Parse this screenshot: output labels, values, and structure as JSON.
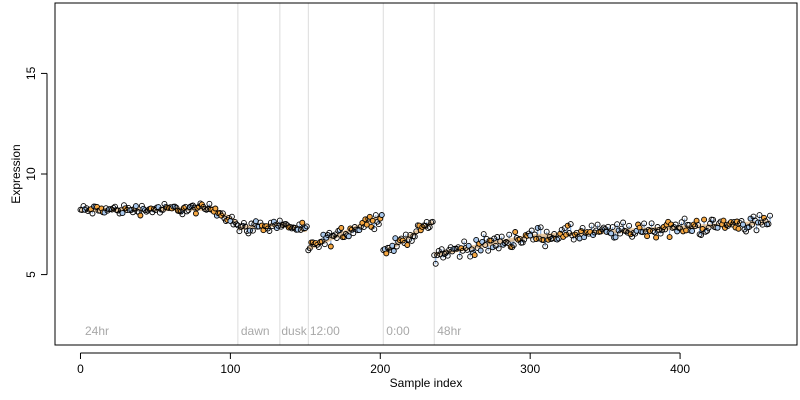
{
  "chart_data": {
    "type": "scatter",
    "xlabel": "Sample index",
    "ylabel": "Expression",
    "xlim": [
      -17,
      478
    ],
    "ylim": [
      1.5,
      18.5
    ],
    "xticks": [
      0,
      100,
      200,
      300,
      400
    ],
    "yticks": [
      5,
      10,
      15
    ],
    "grid": false,
    "colors": {
      "point_edge": "#000000",
      "point_fill_a": "#f5a742",
      "point_fill_b": "#a9c8ec",
      "segment": "#6f9ed8",
      "fit_band": "#e7b67a",
      "divider": "#dcdcdc",
      "annotation": "#a8a8a8"
    },
    "dividers": [
      105,
      133,
      152,
      202,
      236
    ],
    "annotations": [
      {
        "label": "24hr",
        "x": 3,
        "y": 2.0
      },
      {
        "label": "dawn",
        "x": 107,
        "y": 2.0
      },
      {
        "label": "dusk",
        "x": 134,
        "y": 2.0
      },
      {
        "label": "12:00",
        "x": 153,
        "y": 2.0
      },
      {
        "label": "0:00",
        "x": 204,
        "y": 2.0
      },
      {
        "label": "48hr",
        "x": 238,
        "y": 2.0
      }
    ],
    "segments": [
      {
        "x0": 0,
        "x1": 104,
        "y0": 8.2,
        "y1": 8.3,
        "noise": 0.22,
        "dip_start": 88,
        "dip_end": 104,
        "dip_to": 7.6
      },
      {
        "x0": 105,
        "x1": 132,
        "y0": 7.3,
        "y1": 7.5,
        "noise": 0.25
      },
      {
        "x0": 133,
        "x1": 151,
        "y0": 7.5,
        "y1": 7.2,
        "noise": 0.2
      },
      {
        "x0": 152,
        "x1": 201,
        "y0": 6.3,
        "y1": 7.9,
        "noise": 0.3
      },
      {
        "x0": 202,
        "x1": 235,
        "y0": 6.1,
        "y1": 7.6,
        "noise": 0.25
      },
      {
        "x0": 236,
        "x1": 300,
        "y0": 6.0,
        "y1": 6.9,
        "noise": 0.35
      },
      {
        "x0": 301,
        "x1": 460,
        "y0": 6.9,
        "y1": 7.6,
        "noise": 0.35
      }
    ]
  }
}
